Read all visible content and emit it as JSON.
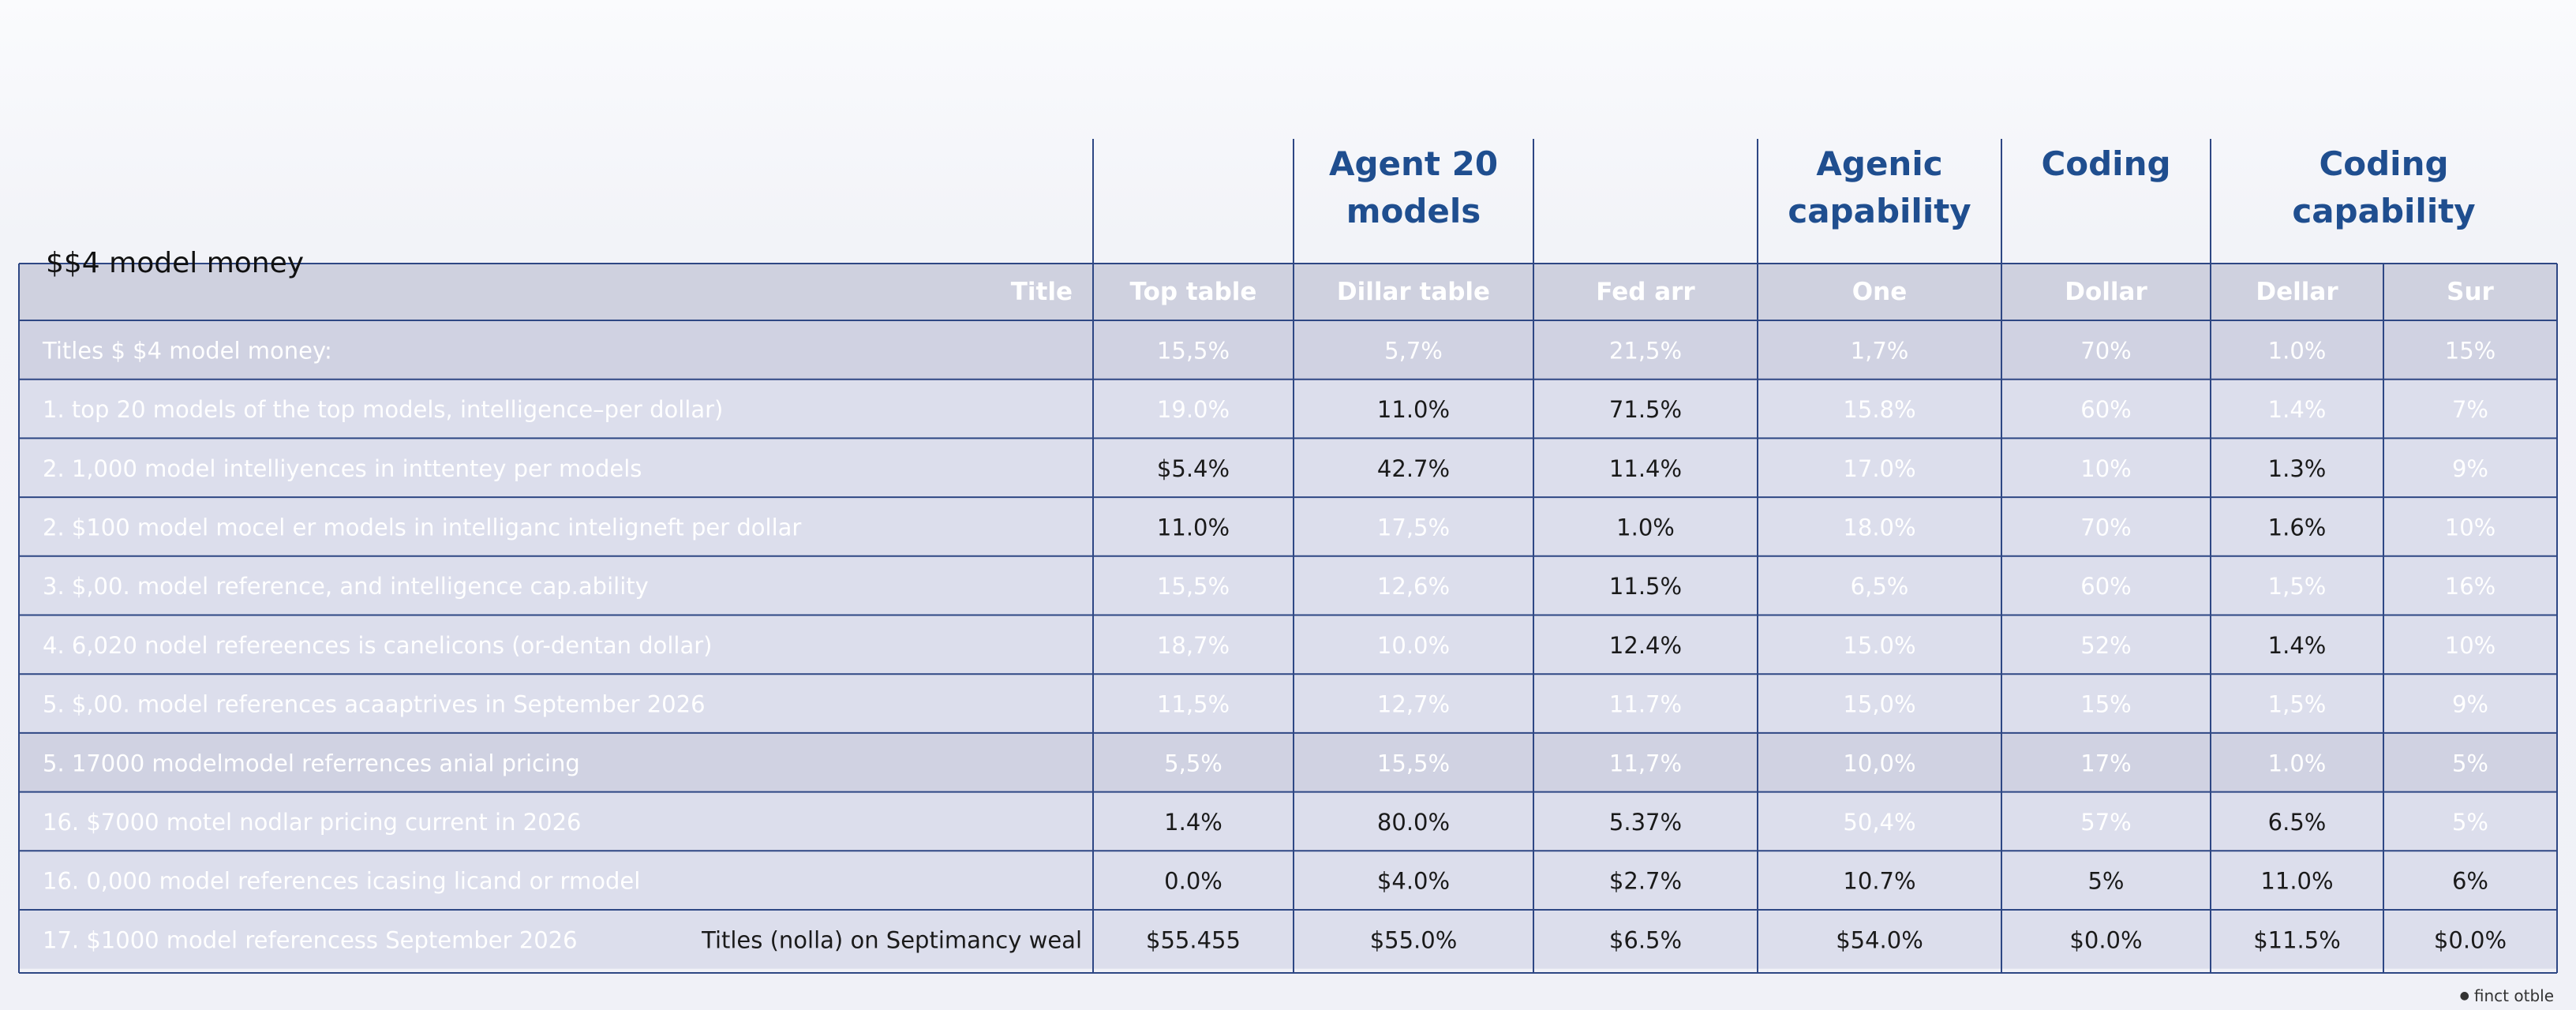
{
  "chart_data": {
    "type": "table",
    "title": "$$4 model money",
    "group_headers": [
      {
        "col_start": 1,
        "col_span": 1,
        "text": ""
      },
      {
        "col_start": 2,
        "col_span": 1,
        "text": "Agent 20 models"
      },
      {
        "col_start": 3,
        "col_span": 1,
        "text": ""
      },
      {
        "col_start": 4,
        "col_span": 1,
        "text": "Agenic capability"
      },
      {
        "col_start": 5,
        "col_span": 1,
        "text": "Coding"
      },
      {
        "col_start": 6,
        "col_span": 2,
        "text": "Coding capability"
      }
    ],
    "columns": [
      "Title",
      "Top table",
      "Dillar table",
      "Fed arr",
      "One",
      "Dollar",
      "Dellar",
      "Sur"
    ],
    "rows": [
      [
        "Titles $ $4 model money:",
        "15,5%",
        "5,7%",
        "21,5%",
        "1,7%",
        "70%",
        "1.0%",
        "15%"
      ],
      [
        "1. top 20 models of the top models, intelligence–per dollar)",
        "19.0%",
        "11.0%",
        "71.5%",
        "15.8%",
        "60%",
        "1.4%",
        "7%"
      ],
      [
        "2.   1,000 model intelliyences in inttentey per models",
        "$5.4%",
        "42.7%",
        "11.4%",
        "17.0%",
        "10%",
        "1.3%",
        "9%"
      ],
      [
        "2.   $100 model mocel er models in intelliganc inteligneft per dollar",
        "11.0%",
        "17,5%",
        "1.0%",
        "18.0%",
        "70%",
        "1.6%",
        "10%"
      ],
      [
        "3.   $,00. model reference, and intelligence cap.ability",
        "15,5%",
        "12,6%",
        "11.5%",
        "6,5%",
        "60%",
        "1,5%",
        "16%"
      ],
      [
        "4.   6,020 nodel refereences is canelicons (or-dentan dollar)",
        "18,7%",
        "10.0%",
        "12.4%",
        "15.0%",
        "52%",
        "1.4%",
        "10%"
      ],
      [
        "5.   $,00. model references acaaptrives in September 2026",
        "11,5%",
        "12,7%",
        "11.7%",
        "15,0%",
        "15%",
        "1,5%",
        "9%"
      ],
      [
        "5.   17000 modelmodel referrences anial pricing",
        "5,5%",
        "15,5%",
        "11,7%",
        "10,0%",
        "17%",
        "1.0%",
        "5%"
      ],
      [
        "16.  $7000 motel nodlar pricing current in 2026",
        "1.4%",
        "80.0%",
        "5.37%",
        "50,4%",
        "57%",
        "6.5%",
        "5%"
      ],
      [
        "16.  0,000 model references icasing licand or rmodel",
        "0.0%",
        "$4.0%",
        "$2.7%",
        "10.7%",
        "5%",
        "11.0%",
        "6%"
      ],
      [
        "17.  $1000 model referencess September 2026",
        "$55.455",
        "$55.0%",
        "$6.5%",
        "$54.0%",
        "$0.0%",
        "$11.5%",
        "$0.0%"
      ]
    ],
    "last_row_note": "Titles (nolla) on Septimancy weal",
    "highlight_rows": [
      0,
      7
    ],
    "dark_text_cells": [
      [
        1,
        2
      ],
      [
        1,
        3
      ],
      [
        2,
        1
      ],
      [
        2,
        2
      ],
      [
        2,
        3
      ],
      [
        2,
        6
      ],
      [
        3,
        1
      ],
      [
        3,
        3
      ],
      [
        3,
        6
      ],
      [
        4,
        3
      ],
      [
        5,
        3
      ],
      [
        5,
        6
      ],
      [
        8,
        1
      ],
      [
        8,
        2
      ],
      [
        8,
        3
      ],
      [
        8,
        6
      ],
      [
        9,
        1
      ],
      [
        9,
        2
      ],
      [
        9,
        3
      ],
      [
        9,
        4
      ],
      [
        9,
        5
      ],
      [
        9,
        6
      ],
      [
        9,
        7
      ],
      [
        10,
        1
      ],
      [
        10,
        2
      ],
      [
        10,
        3
      ],
      [
        10,
        4
      ],
      [
        10,
        5
      ],
      [
        10,
        6
      ],
      [
        10,
        7
      ]
    ],
    "colors": {
      "border": "#2e4784",
      "header_text": "#1f4e8f",
      "header_row_fill": "#cfd1df",
      "row_fill": "#dcdeec",
      "highlight_fill": "#d0d2e2",
      "light_text": "#ffffff",
      "dark_text": "#1a1a1a"
    }
  },
  "footnote": {
    "icon": "copyright-icon",
    "text": "finct otble"
  }
}
